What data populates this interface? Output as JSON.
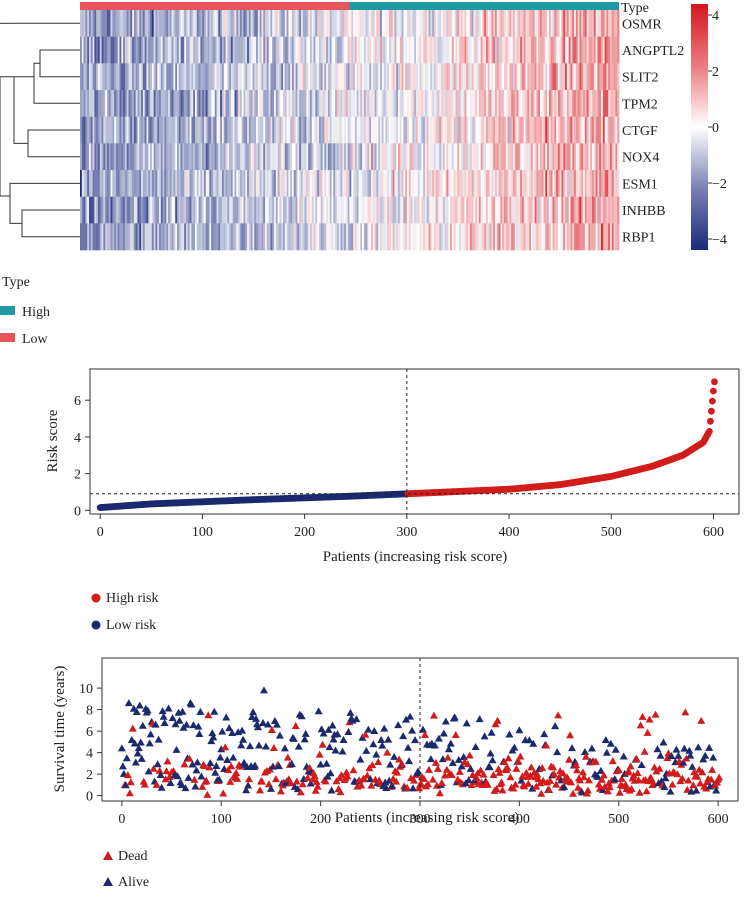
{
  "colors": {
    "high_type": "#1f9aa4",
    "low_type": "#e8545a",
    "heat_low": "#1c2a7c",
    "heat_mid": "#ffffff",
    "heat_high": "#d4161d",
    "risk_high": "#d21c1c",
    "risk_low": "#1b2a6e",
    "dead": "#d21c1c",
    "alive": "#1b2a6e"
  },
  "chart_data": [
    {
      "type": "heatmap",
      "annotation_label": "Type",
      "genes": [
        "OSMR",
        "ANGPTL2",
        "SLIT2",
        "TPM2",
        "CTGF",
        "NOX4",
        "ESM1",
        "INHBB",
        "RBP1"
      ],
      "columns": 300,
      "low_columns": 150,
      "colorbar": {
        "min": -4,
        "max": 4,
        "ticks": [
          "4",
          "2",
          "0",
          "−2",
          "−4"
        ]
      },
      "legend": {
        "title": "Type",
        "items": [
          {
            "label": "High",
            "color": "#1f9aa4"
          },
          {
            "label": "Low",
            "color": "#e8545a"
          }
        ]
      }
    },
    {
      "type": "scatter",
      "xlabel": "Patients (increasing risk score)",
      "ylabel": "Risk score",
      "xlim": [
        -10,
        625
      ],
      "ylim": [
        -0.2,
        7.7
      ],
      "xticks": [
        0,
        100,
        200,
        300,
        400,
        500,
        600
      ],
      "yticks": [
        0,
        2,
        4,
        6
      ],
      "cutoff_patient": 300,
      "cutoff_score": 0.9,
      "n_patients": 602,
      "curve": [
        [
          0,
          0.15
        ],
        [
          50,
          0.35
        ],
        [
          150,
          0.58
        ],
        [
          250,
          0.78
        ],
        [
          300,
          0.9
        ],
        [
          400,
          1.15
        ],
        [
          450,
          1.4
        ],
        [
          500,
          1.85
        ],
        [
          540,
          2.4
        ],
        [
          570,
          3.0
        ],
        [
          590,
          3.7
        ],
        [
          596,
          4.3
        ],
        [
          600,
          6.5
        ],
        [
          602,
          7.5
        ]
      ],
      "legend": [
        {
          "label": "High risk",
          "color": "#d21c1c"
        },
        {
          "label": "Low risk",
          "color": "#1b2a6e"
        }
      ]
    },
    {
      "type": "scatter",
      "xlabel": "Patients (increasing risk score)",
      "ylabel": "Survival time (years)",
      "xlim": [
        -20,
        620
      ],
      "ylim": [
        -0.5,
        12.8
      ],
      "xticks": [
        0,
        100,
        200,
        300,
        400,
        500,
        600
      ],
      "yticks": [
        0,
        2,
        4,
        6,
        8,
        10
      ],
      "cutoff_patient": 300,
      "n_patients": 602,
      "legend": [
        {
          "label": "Dead",
          "color": "#d21c1c"
        },
        {
          "label": "Alive",
          "color": "#1b2a6e"
        }
      ]
    }
  ]
}
